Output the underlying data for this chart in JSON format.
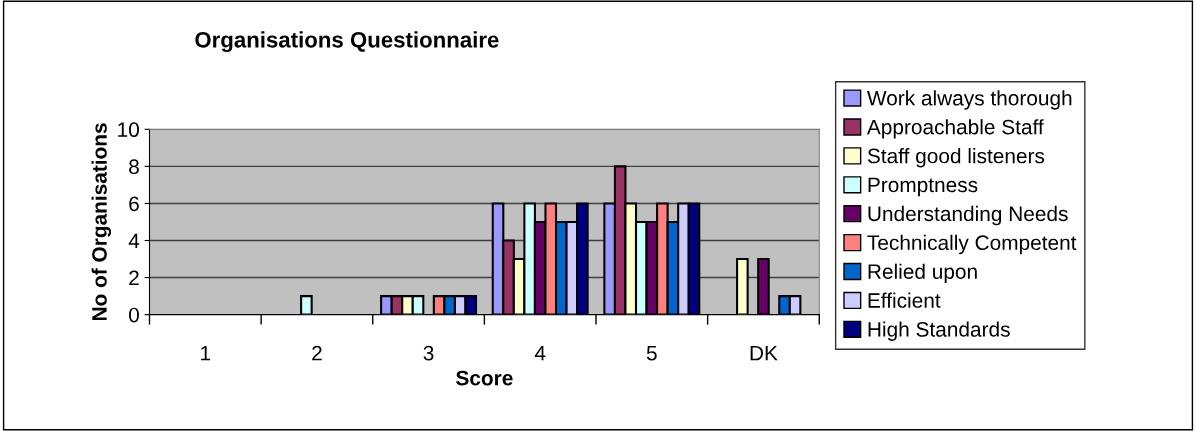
{
  "chart_data": {
    "type": "bar",
    "title": "Organisations Questionnaire",
    "xlabel": "Score",
    "ylabel": "No of Organisations",
    "categories": [
      "1",
      "2",
      "3",
      "4",
      "5",
      "DK"
    ],
    "series": [
      {
        "name": "Work always thorough",
        "color": "#9999ff",
        "values": [
          0,
          0,
          1,
          6,
          6,
          0
        ]
      },
      {
        "name": "Approachable Staff",
        "color": "#993366",
        "values": [
          0,
          0,
          1,
          4,
          8,
          0
        ]
      },
      {
        "name": "Staff good listeners",
        "color": "#ffffcc",
        "values": [
          0,
          0,
          1,
          3,
          6,
          3
        ]
      },
      {
        "name": "Promptness",
        "color": "#ccffff",
        "values": [
          0,
          1,
          1,
          6,
          5,
          0
        ]
      },
      {
        "name": "Understanding Needs",
        "color": "#660066",
        "values": [
          0,
          0,
          0,
          5,
          5,
          3
        ]
      },
      {
        "name": "Technically Competent",
        "color": "#ff8080",
        "values": [
          0,
          0,
          1,
          6,
          6,
          0
        ]
      },
      {
        "name": "Relied upon",
        "color": "#0066cc",
        "values": [
          0,
          0,
          1,
          5,
          5,
          1
        ]
      },
      {
        "name": "Efficient",
        "color": "#ccccff",
        "values": [
          0,
          0,
          1,
          5,
          6,
          1
        ]
      },
      {
        "name": "High Standards",
        "color": "#000080",
        "values": [
          0,
          0,
          1,
          6,
          6,
          0
        ]
      }
    ],
    "ylim": [
      0,
      10
    ],
    "yticks": [
      0,
      2,
      4,
      6,
      8,
      10
    ],
    "grid": "y",
    "legend": "right"
  }
}
